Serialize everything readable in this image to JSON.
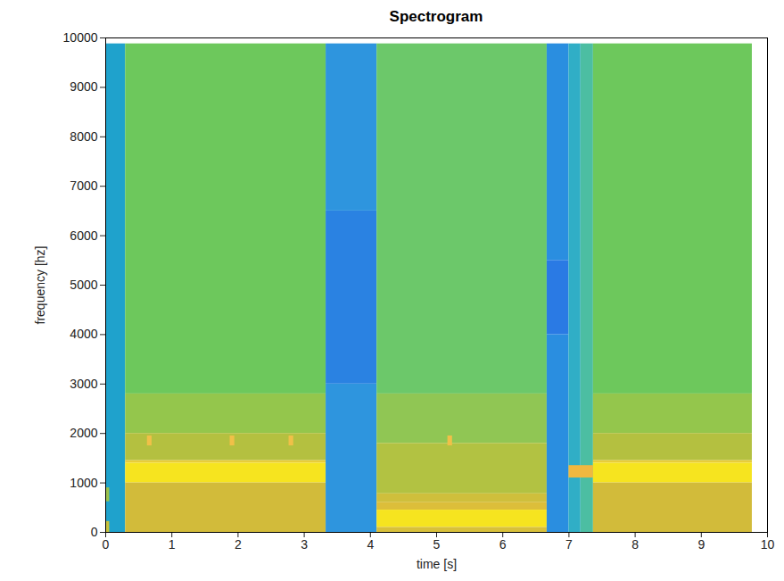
{
  "chart_data": {
    "type": "heatmap",
    "title": "Spectrogram",
    "x_label": "time [s]",
    "y_label": "frequency [hz]",
    "xlim": [
      0,
      10
    ],
    "ylim": [
      0,
      10000
    ],
    "xticks": [
      0,
      1,
      2,
      3,
      4,
      5,
      6,
      7,
      8,
      9,
      10
    ],
    "yticks": [
      0,
      1000,
      2000,
      3000,
      4000,
      5000,
      6000,
      7000,
      8000,
      9000,
      10000
    ],
    "cells": [
      {
        "x1": 0,
        "x2": 0.3,
        "y1": 0,
        "y2": 9880,
        "color": "#1fa2cc"
      },
      {
        "x1": 0,
        "x2": 0.06,
        "y1": 0,
        "y2": 220,
        "color": "#c9c23a"
      },
      {
        "x1": 0,
        "x2": 0.06,
        "y1": 620,
        "y2": 900,
        "color": "#9cc24c"
      },
      {
        "x1": 0.3,
        "x2": 3.33,
        "y1": 2800,
        "y2": 9880,
        "color": "#6dc85c"
      },
      {
        "x1": 0.3,
        "x2": 3.33,
        "y1": 2000,
        "y2": 2800,
        "color": "#94c64c"
      },
      {
        "x1": 0.3,
        "x2": 3.33,
        "y1": 1450,
        "y2": 2000,
        "color": "#b4c040"
      },
      {
        "x1": 0.3,
        "x2": 3.33,
        "y1": 1400,
        "y2": 1450,
        "color": "#e8cc3a"
      },
      {
        "x1": 0.3,
        "x2": 3.33,
        "y1": 1000,
        "y2": 1400,
        "color": "#f6e41f"
      },
      {
        "x1": 0.3,
        "x2": 3.33,
        "y1": 0,
        "y2": 1000,
        "color": "#d2bb3a"
      },
      {
        "x1": 0.63,
        "x2": 0.7,
        "y1": 1750,
        "y2": 1950,
        "color": "#f0c048"
      },
      {
        "x1": 1.88,
        "x2": 1.95,
        "y1": 1750,
        "y2": 1950,
        "color": "#f0c048"
      },
      {
        "x1": 2.77,
        "x2": 2.84,
        "y1": 1750,
        "y2": 1950,
        "color": "#f0c048"
      },
      {
        "x1": 3.33,
        "x2": 4.1,
        "y1": 0,
        "y2": 3000,
        "color": "#2e95de"
      },
      {
        "x1": 3.33,
        "x2": 4.1,
        "y1": 3000,
        "y2": 6500,
        "color": "#2a82e2"
      },
      {
        "x1": 3.33,
        "x2": 4.1,
        "y1": 6500,
        "y2": 9880,
        "color": "#2e95de"
      },
      {
        "x1": 4.1,
        "x2": 6.67,
        "y1": 2800,
        "y2": 9880,
        "color": "#6cc86a"
      },
      {
        "x1": 4.1,
        "x2": 6.67,
        "y1": 1800,
        "y2": 2800,
        "color": "#90c654"
      },
      {
        "x1": 4.1,
        "x2": 6.67,
        "y1": 780,
        "y2": 1800,
        "color": "#b2c242"
      },
      {
        "x1": 4.1,
        "x2": 6.67,
        "y1": 600,
        "y2": 780,
        "color": "#cfbf3c"
      },
      {
        "x1": 4.1,
        "x2": 6.67,
        "y1": 450,
        "y2": 600,
        "color": "#dcbe3a"
      },
      {
        "x1": 4.1,
        "x2": 6.67,
        "y1": 100,
        "y2": 450,
        "color": "#f6e41f"
      },
      {
        "x1": 4.1,
        "x2": 6.67,
        "y1": 0,
        "y2": 100,
        "color": "#d8c03a"
      },
      {
        "x1": 5.17,
        "x2": 5.24,
        "y1": 1750,
        "y2": 1950,
        "color": "#f0c048"
      },
      {
        "x1": 6.67,
        "x2": 7.0,
        "y1": 0,
        "y2": 4000,
        "color": "#2a8ee0"
      },
      {
        "x1": 6.67,
        "x2": 7.0,
        "y1": 4000,
        "y2": 5500,
        "color": "#2a7ae4"
      },
      {
        "x1": 6.67,
        "x2": 7.0,
        "y1": 5500,
        "y2": 9880,
        "color": "#2a8ee0"
      },
      {
        "x1": 7.0,
        "x2": 7.18,
        "y1": 0,
        "y2": 9880,
        "color": "#30aec6"
      },
      {
        "x1": 7.18,
        "x2": 7.37,
        "y1": 0,
        "y2": 9880,
        "color": "#4cbea2"
      },
      {
        "x1": 7.0,
        "x2": 7.37,
        "y1": 1100,
        "y2": 1350,
        "color": "#f0b840"
      },
      {
        "x1": 7.37,
        "x2": 9.77,
        "y1": 2800,
        "y2": 9880,
        "color": "#6dc85c"
      },
      {
        "x1": 7.37,
        "x2": 9.77,
        "y1": 2000,
        "y2": 2800,
        "color": "#94c64c"
      },
      {
        "x1": 7.37,
        "x2": 9.77,
        "y1": 1450,
        "y2": 2000,
        "color": "#b4c040"
      },
      {
        "x1": 7.37,
        "x2": 9.77,
        "y1": 1400,
        "y2": 1450,
        "color": "#e8cc3a"
      },
      {
        "x1": 7.37,
        "x2": 9.77,
        "y1": 1000,
        "y2": 1400,
        "color": "#f6e41f"
      },
      {
        "x1": 7.37,
        "x2": 9.77,
        "y1": 0,
        "y2": 1000,
        "color": "#d2bb3a"
      }
    ]
  }
}
